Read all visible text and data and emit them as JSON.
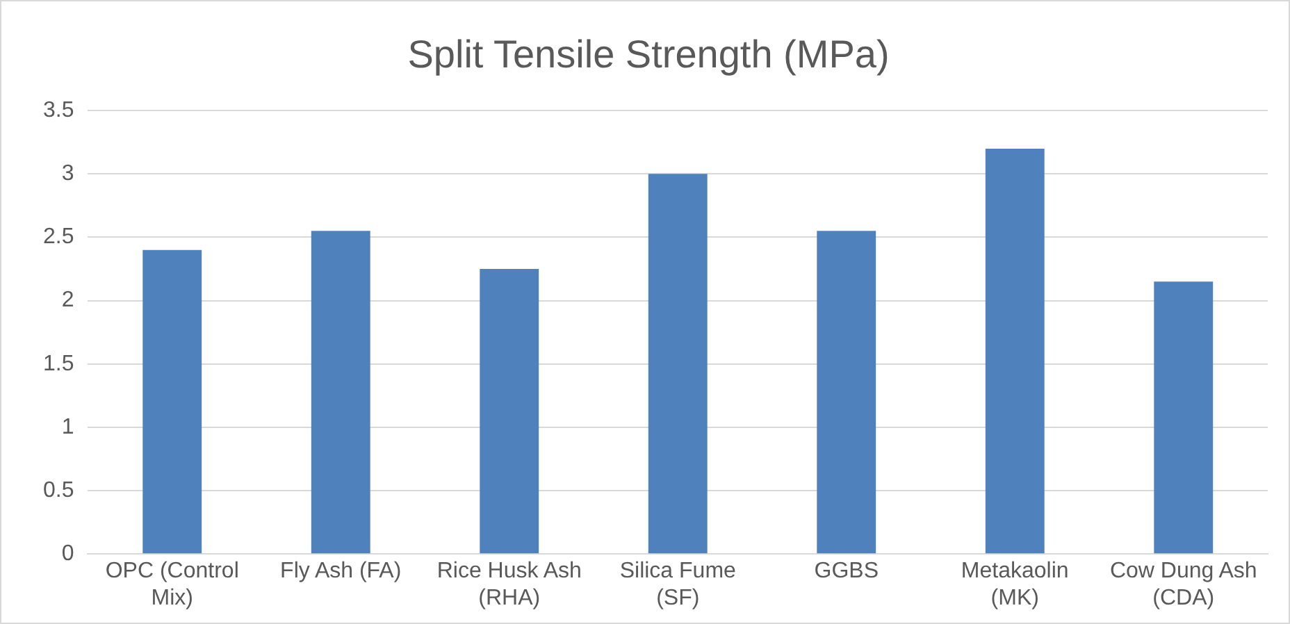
{
  "chart_data": {
    "type": "bar",
    "title": "Split Tensile Strength (MPa)",
    "categories": [
      "OPC (Control Mix)",
      "Fly Ash (FA)",
      "Rice Husk Ash (RHA)",
      "Silica Fume (SF)",
      "GGBS",
      "Metakaolin (MK)",
      "Cow Dung Ash (CDA)"
    ],
    "values": [
      2.4,
      2.55,
      2.25,
      3.0,
      2.55,
      3.2,
      2.15
    ],
    "color": "#4f81bd",
    "ylim": [
      0,
      3.5
    ],
    "yticks": [
      0,
      0.5,
      1,
      1.5,
      2,
      2.5,
      3,
      3.5
    ],
    "grid": "y"
  }
}
